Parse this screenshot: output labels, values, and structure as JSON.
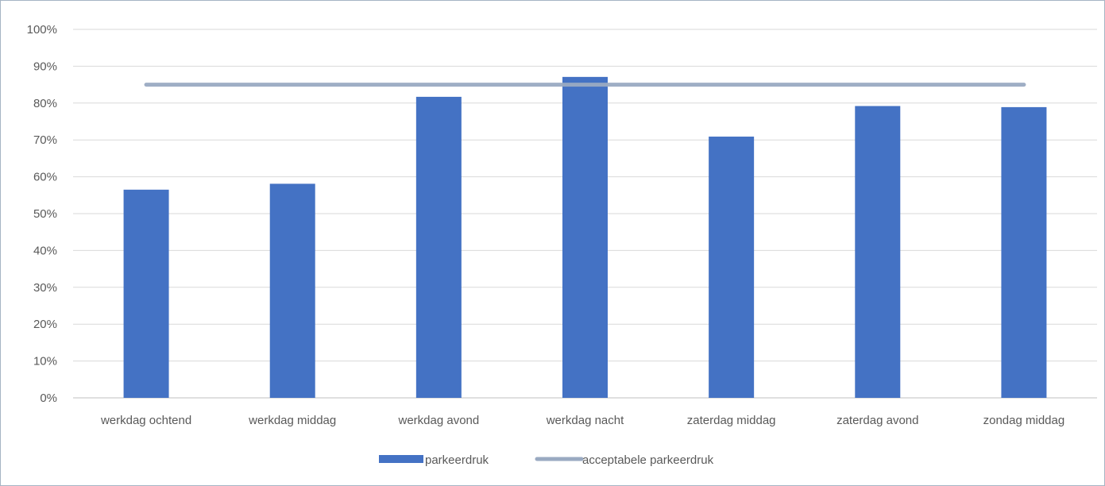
{
  "chart_data": {
    "type": "bar",
    "categories": [
      "werkdag ochtend",
      "werkdag middag",
      "werkdag avond",
      "werkdag nacht",
      "zaterdag middag",
      "zaterdag avond",
      "zondag middag"
    ],
    "series": [
      {
        "name": "parkeerdruk",
        "type": "bar",
        "values": [
          56.5,
          58.1,
          81.7,
          87.1,
          70.9,
          79.2,
          78.9
        ],
        "color": "#4472c4"
      },
      {
        "name": "acceptabele parkeerdruk",
        "type": "line",
        "values": [
          85,
          85,
          85,
          85,
          85,
          85,
          85
        ],
        "color": "#9aaac2"
      }
    ],
    "y_ticks": [
      "0%",
      "10%",
      "20%",
      "30%",
      "40%",
      "50%",
      "60%",
      "70%",
      "80%",
      "90%",
      "100%"
    ],
    "ylim": [
      0,
      100
    ],
    "y_unit": "%",
    "grid": true,
    "legend_position": "bottom"
  }
}
